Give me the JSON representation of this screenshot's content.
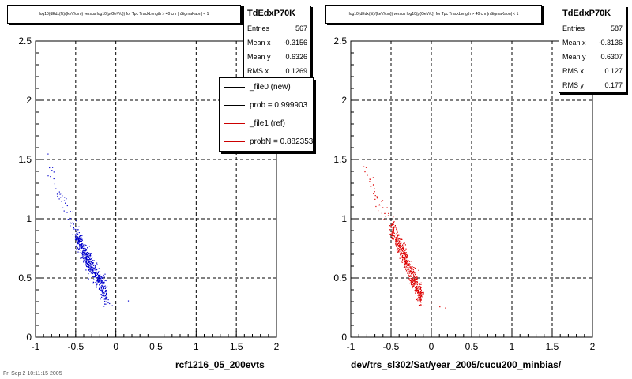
{
  "chart_data": [
    {
      "type": "scatter",
      "title": "log10(dEdx(fit)/(keV/cm)) versus log10(p(GeV/c)) for Tpc TrackLength > 40 cm |nSigmaKaon| < 1",
      "xlabel": "rcf1216_05_200evts",
      "ylabel": "",
      "xlim": [
        -1,
        2
      ],
      "ylim": [
        0,
        2.5
      ],
      "xticks": [
        "-1",
        "-0.5",
        "0",
        "0.5",
        "1",
        "1.5",
        "2"
      ],
      "yticks": [
        "0",
        "0.5",
        "1",
        "1.5",
        "2",
        "2.5"
      ],
      "grid": true,
      "color": "#0000cc",
      "band": {
        "x_from": -0.5,
        "y_from": 0.86,
        "x_to": -0.12,
        "y_to": 0.35
      },
      "outliers": [
        [
          -0.85,
          1.55
        ],
        [
          -0.82,
          1.36
        ],
        [
          -0.7,
          1.21
        ],
        [
          -0.68,
          1.15
        ],
        [
          -0.65,
          1.07
        ],
        [
          -0.6,
          1.0
        ],
        [
          0.15,
          0.31
        ],
        [
          -0.05,
          0.27
        ],
        [
          -0.1,
          0.32
        ]
      ],
      "stats": {
        "name": "TdEdxP70K",
        "rows": [
          {
            "label": "Entries",
            "value": "567"
          },
          {
            "label": "Mean x",
            "value": "-0.3156"
          },
          {
            "label": "Mean y",
            "value": "0.6326"
          },
          {
            "label": "RMS x",
            "value": "0.1269"
          }
        ]
      },
      "legend": {
        "placement": "top-right",
        "entries": [
          {
            "label": "_file0 (new)",
            "color": "#000000"
          },
          {
            "label": "prob = 0.999903",
            "color": "#000000"
          },
          {
            "label": "_file1 (ref)",
            "color": "#cc0000"
          },
          {
            "label": "probN = 0.882353",
            "color": "#cc0000"
          }
        ]
      }
    },
    {
      "type": "scatter",
      "title": "log10(dEdx(fit)/(keV/cm)) versus log10(p(GeV/c)) for Tpc TrackLength > 40 cm |nSigmaKaon| < 1",
      "xlabel": "dev/trs_sl302/Sat/year_2005/cucu200_minbias/",
      "ylabel": "",
      "xlim": [
        -1,
        2
      ],
      "ylim": [
        0,
        2.5
      ],
      "xticks": [
        "-1",
        "-0.5",
        "0",
        "0.5",
        "1",
        "1.5",
        "2"
      ],
      "yticks": [
        "0",
        "0.5",
        "1",
        "1.5",
        "2",
        "2.5"
      ],
      "grid": true,
      "color": "#dd0000",
      "band": {
        "x_from": -0.5,
        "y_from": 0.93,
        "x_to": -0.12,
        "y_to": 0.33
      },
      "outliers": [
        [
          -0.8,
          1.37
        ],
        [
          -0.75,
          1.28
        ],
        [
          -0.7,
          1.2
        ],
        [
          -0.66,
          1.12
        ],
        [
          -0.62,
          1.05
        ],
        [
          0.17,
          0.25
        ],
        [
          0.1,
          0.26
        ],
        [
          0.0,
          0.3
        ]
      ],
      "stats": {
        "name": "TdEdxP70K",
        "rows": [
          {
            "label": "Entries",
            "value": "587"
          },
          {
            "label": "Mean x",
            "value": "-0.3136"
          },
          {
            "label": "Mean y",
            "value": "0.6307"
          },
          {
            "label": "RMS x",
            "value": "0.127"
          },
          {
            "label": "RMS y",
            "value": "0.177"
          }
        ]
      }
    }
  ],
  "footer": "Fri Sep  2 10:11:15 2005"
}
